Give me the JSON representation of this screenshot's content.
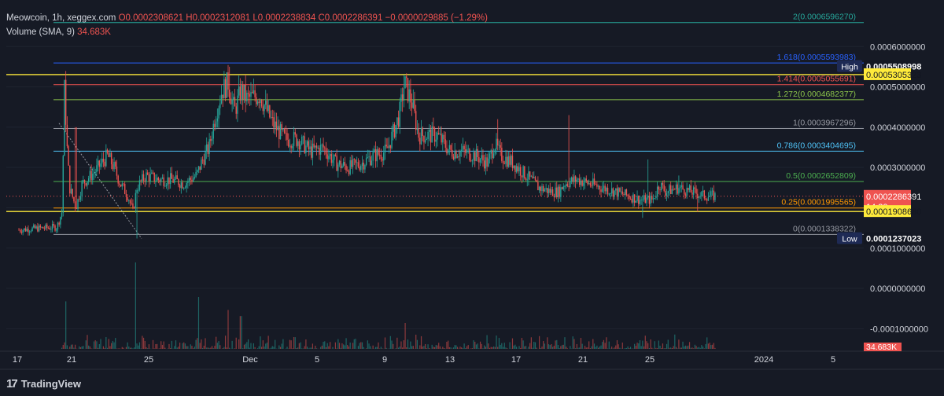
{
  "legend": {
    "symbol": "Meowcoin, 1h, xeggex.com",
    "open": "O0.0002308621",
    "high": "H0.0002312081",
    "low": "L0.0002238834",
    "close": "C0.0002286391",
    "change": "−0.0000029885 (−1.29%)",
    "volume_label": "Volume (SMA, 9)",
    "volume_value": "34.683K"
  },
  "brand": {
    "name": "TradingView",
    "logo": "17"
  },
  "colors": {
    "background": "#161a25",
    "up": "#26a69a",
    "down": "#ef5350",
    "axis_text": "#d1d4dc",
    "yellow": "#ffeb3b"
  },
  "chart_data": {
    "type": "candlestick",
    "symbol": "Meowcoin",
    "interval": "1h",
    "exchange": "xeggex.com",
    "ylim": [
      -0.00015,
      0.0007
    ],
    "y_ticks": [
      "0.0006000000",
      "0.0005000000",
      "0.0004000000",
      "0.0003000000",
      "0.0001000000",
      "0.0000000000",
      "-0.0001000000"
    ],
    "x_ticks": [
      "17",
      "21",
      "25",
      "Dec",
      "5",
      "9",
      "13",
      "17",
      "21",
      "25",
      "2024",
      "5"
    ],
    "price_path": [
      [
        0,
        0.000145
      ],
      [
        1,
        0.000148
      ],
      [
        2,
        0.00015
      ],
      [
        3,
        0.000152
      ],
      [
        3.4,
        0.00019
      ],
      [
        3.6,
        0.0005
      ],
      [
        3.8,
        0.00035
      ],
      [
        4,
        0.00025
      ],
      [
        4.5,
        0.0002
      ],
      [
        5,
        0.00026
      ],
      [
        6,
        0.00029
      ],
      [
        7,
        0.00033
      ],
      [
        7.5,
        0.0003
      ],
      [
        8,
        0.00026
      ],
      [
        8.6,
        0.00023
      ],
      [
        9,
        0.00019
      ],
      [
        9.3,
        0.00025
      ],
      [
        10,
        0.00028
      ],
      [
        11,
        0.00027
      ],
      [
        12,
        0.00027
      ],
      [
        13,
        0.00026
      ],
      [
        14,
        0.00028
      ],
      [
        14.5,
        0.00032
      ],
      [
        15,
        0.00035
      ],
      [
        15.5,
        0.00043
      ],
      [
        16,
        0.00049
      ],
      [
        16.5,
        0.00051
      ],
      [
        17,
        0.00044
      ],
      [
        17.5,
        0.00049
      ],
      [
        18,
        0.00047
      ],
      [
        19,
        0.00048
      ],
      [
        20,
        0.00041
      ],
      [
        21,
        0.00037
      ],
      [
        22,
        0.00037
      ],
      [
        23,
        0.00034
      ],
      [
        24,
        0.00035
      ],
      [
        25,
        0.00031
      ],
      [
        26,
        0.0003
      ],
      [
        27,
        0.00031
      ],
      [
        28,
        0.00033
      ],
      [
        29,
        0.00034
      ],
      [
        30,
        0.00043
      ],
      [
        30.4,
        0.00051
      ],
      [
        31,
        0.00046
      ],
      [
        31.5,
        0.00038
      ],
      [
        32,
        0.00038
      ],
      [
        33,
        0.00038
      ],
      [
        34,
        0.00034
      ],
      [
        35,
        0.00034
      ],
      [
        36,
        0.00033
      ],
      [
        37,
        0.00031
      ],
      [
        37.5,
        0.00036
      ],
      [
        38,
        0.00033
      ],
      [
        39,
        0.00031
      ],
      [
        40,
        0.00028
      ],
      [
        41,
        0.00025
      ],
      [
        42,
        0.00024
      ],
      [
        42.6,
        0.00024
      ],
      [
        43,
        0.00026
      ],
      [
        44,
        0.00027
      ],
      [
        45,
        0.00026
      ],
      [
        46,
        0.00025
      ],
      [
        47,
        0.00024
      ],
      [
        48,
        0.00023
      ],
      [
        49,
        0.00022
      ],
      [
        50,
        0.00022
      ],
      [
        50.5,
        0.00026
      ],
      [
        51,
        0.00024
      ],
      [
        52,
        0.00025
      ],
      [
        53,
        0.00024
      ],
      [
        54,
        0.00023
      ],
      [
        55,
        0.000229
      ]
    ],
    "candle_timeline_days": [
      17,
      47.5
    ],
    "spikes": [
      {
        "day": 3.6,
        "high": 0.0005
      },
      {
        "day": 4.5,
        "high": 0.0004
      },
      {
        "day": 16.6,
        "high": 0.00055
      },
      {
        "day": 30.4,
        "high": 0.00053
      },
      {
        "day": 31.5,
        "high": 0.00041
      },
      {
        "day": 37.8,
        "high": 0.00042
      },
      {
        "day": 43.4,
        "high": 0.00043
      },
      {
        "day": 49.6,
        "high": 0.00032
      },
      {
        "day": 52,
        "high": 0.00028
      }
    ],
    "lows": [
      {
        "day": 9.3,
        "low": 0.000124
      },
      {
        "day": 49.2,
        "low": 0.000175
      },
      {
        "day": 53.5,
        "low": 0.00019
      }
    ],
    "volume_bars_note": "volume histogram at bottom of chart",
    "volume_spikes": [
      {
        "day": 3.7,
        "v": 0.55
      },
      {
        "day": 9.2,
        "v": 1.0
      },
      {
        "day": 14.2,
        "v": 0.6
      },
      {
        "day": 16.5,
        "v": 0.45
      },
      {
        "day": 17.5,
        "v": 0.38
      },
      {
        "day": 30.5,
        "v": 0.3
      }
    ],
    "fibonacci": [
      {
        "level": "2",
        "label": "2(0.0006596270)",
        "price": 0.000659627,
        "color": "#26a69a"
      },
      {
        "level": "1.618",
        "label": "1.618(0.0005593983)",
        "price": 0.0005593983,
        "color": "#2962ff"
      },
      {
        "level": "1.414",
        "label": "1.414(0.0005055691)",
        "price": 0.0005055691,
        "color": "#ef5350"
      },
      {
        "level": "1.272",
        "label": "1.272(0.0004682377)",
        "price": 0.0004682377,
        "color": "#8bc34a"
      },
      {
        "level": "1",
        "label": "1(0.0003967296)",
        "price": 0.0003967296,
        "color": "#9598a1"
      },
      {
        "level": "0.786",
        "label": "0.786(0.0003404695)",
        "price": 0.0003404695,
        "color": "#4fc3f7"
      },
      {
        "level": "0.5",
        "label": "0.5(0.0002652809)",
        "price": 0.0002652809,
        "color": "#4caf50"
      },
      {
        "level": "0.25",
        "label": "0.25(0.0001995565)",
        "price": 0.0001995565,
        "color": "#ff9800"
      },
      {
        "level": "0",
        "label": "0(0.0001338322)",
        "price": 0.0001338322,
        "color": "#9598a1"
      }
    ],
    "horizontal_lines": [
      {
        "price": 0.0005305323,
        "color": "#ffeb3b"
      },
      {
        "price": 0.000190868,
        "color": "#ffeb3b"
      }
    ],
    "price_labels": [
      {
        "tag": "High",
        "value": "0.0005508998",
        "price": 0.0005508998,
        "bg": "#131722",
        "fg": "#ffffff",
        "tag_bg": "#1e2a55"
      },
      {
        "tag": "",
        "value": "0.0005305323",
        "price": 0.0005305323,
        "bg": "#ffeb3b",
        "fg": "#131722"
      },
      {
        "tag": "",
        "value": "0.0002286391",
        "price": 0.0002286391,
        "bg": "#ef5350",
        "fg": "#ffffff",
        "extra": "14:30"
      },
      {
        "tag": "",
        "value": "0.0001908680",
        "price": 0.000190868,
        "bg": "#ffeb3b",
        "fg": "#131722"
      },
      {
        "tag": "Low",
        "value": "0.0001237023",
        "price": 0.0001237023,
        "bg": "#131722",
        "fg": "#ffffff",
        "tag_bg": "#1e2a55"
      }
    ],
    "volume_label": "34.683K",
    "current_price": 0.0002286391
  }
}
